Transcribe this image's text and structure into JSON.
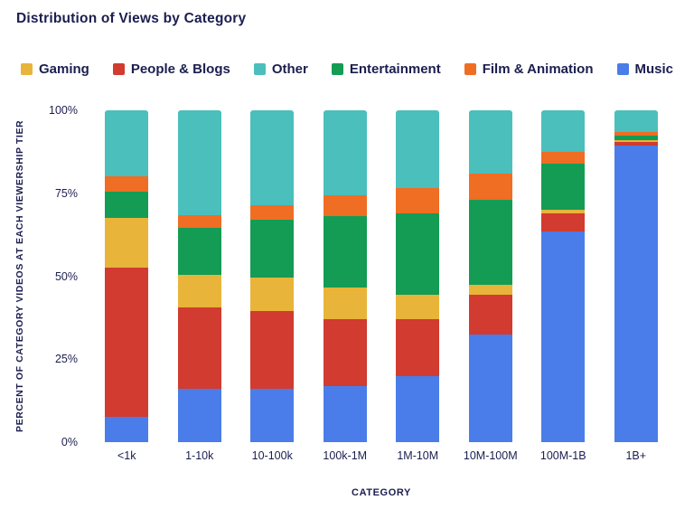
{
  "chart_data": {
    "type": "bar",
    "stacked": true,
    "title": "Distribution of Views by Category",
    "xlabel": "CATEGORY",
    "ylabel": "PERCENT OF CATEGORY VIDEOS AT EACH VIEWERSHIP TIER",
    "categories": [
      "<1k",
      "1-10k",
      "10-100k",
      "100k-1M",
      "1M-10M",
      "10M-100M",
      "100M-1B",
      "1B+"
    ],
    "yticks": [
      "0%",
      "25%",
      "50%",
      "75%",
      "100%"
    ],
    "ylim": [
      0,
      100
    ],
    "grid": false,
    "legend_position": "top",
    "legend_order": [
      "Gaming",
      "People & Blogs",
      "Other",
      "Entertainment",
      "Film & Animation",
      "Music"
    ],
    "stack_order_bottom_to_top": [
      "Music",
      "People & Blogs",
      "Gaming",
      "Entertainment",
      "Film & Animation",
      "Other"
    ],
    "series": [
      {
        "name": "Music",
        "color": "#4a7de9",
        "values": [
          7.5,
          16,
          16,
          17,
          20,
          32.5,
          63.5,
          89.5
        ]
      },
      {
        "name": "People & Blogs",
        "color": "#d13b30",
        "values": [
          45,
          24.5,
          23.5,
          20,
          17,
          12,
          5.5,
          1
        ]
      },
      {
        "name": "Gaming",
        "color": "#e8b43a",
        "values": [
          15,
          10,
          10,
          9.5,
          7.5,
          3,
          1,
          0.5
        ]
      },
      {
        "name": "Entertainment",
        "color": "#149c54",
        "values": [
          8,
          14,
          17.5,
          21.5,
          24.5,
          25.5,
          14,
          1.5
        ]
      },
      {
        "name": "Film & Animation",
        "color": "#f06d24",
        "values": [
          4.5,
          4,
          4.5,
          6.5,
          7.5,
          8,
          3.5,
          1
        ]
      },
      {
        "name": "Other",
        "color": "#4bbfbc",
        "values": [
          20,
          31.5,
          28.5,
          25.5,
          23.5,
          19,
          12.5,
          6.5
        ]
      }
    ],
    "text_color": "#1b1e4f"
  }
}
